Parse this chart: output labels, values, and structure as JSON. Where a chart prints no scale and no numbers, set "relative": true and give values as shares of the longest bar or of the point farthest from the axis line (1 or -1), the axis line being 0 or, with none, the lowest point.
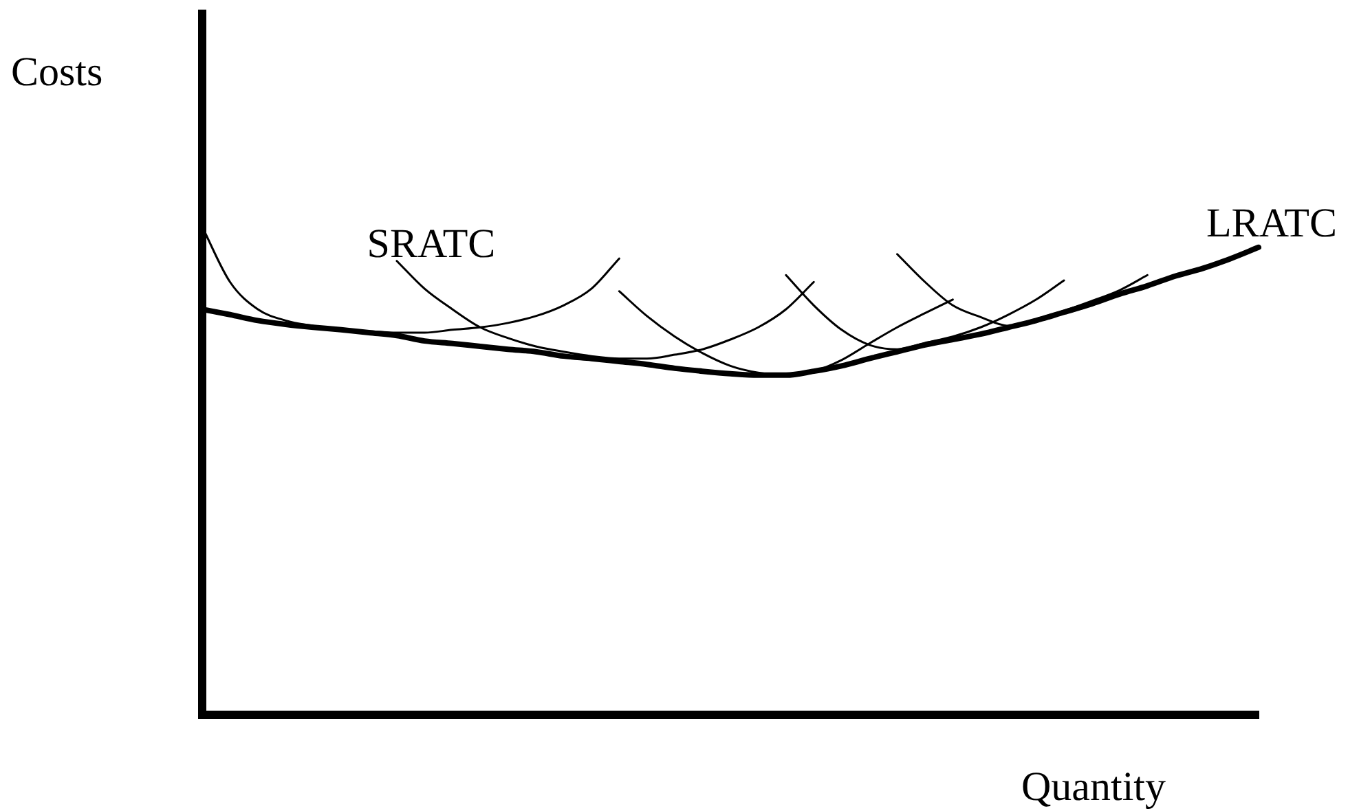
{
  "chart_data": {
    "type": "line",
    "relative": true,
    "xlabel": "Quantity",
    "ylabel": "Costs",
    "legend": false,
    "marker": "none",
    "grid": false,
    "categories": [
      null,
      null,
      null,
      null,
      null,
      null,
      null,
      null,
      null,
      null,
      null,
      null,
      null,
      null,
      null,
      null,
      null,
      null,
      null,
      null,
      null,
      null,
      null,
      null,
      null,
      null,
      null,
      null,
      null,
      null,
      null,
      null,
      null,
      null,
      null,
      null,
      null,
      null,
      null
    ],
    "series": [
      {
        "color": "#000000",
        "values": [
          1.0,
          0.887,
          0.831,
          0.808,
          0.797,
          0.789,
          0.786,
          0.783,
          0.783,
          0.789,
          0.794,
          0.803,
          0.817,
          0.839,
          0.873,
          0.935,
          null,
          null,
          null,
          null,
          null,
          null,
          null,
          null,
          null,
          null,
          null,
          null,
          null,
          null,
          null,
          null,
          null,
          null,
          null,
          null,
          null,
          null,
          null
        ]
      },
      {
        "name": "SRATC",
        "color": "#000000",
        "values": [
          null,
          null,
          null,
          null,
          null,
          null,
          null,
          0.93,
          0.873,
          0.831,
          0.794,
          0.772,
          0.755,
          0.744,
          0.735,
          0.73,
          0.73,
          0.738,
          0.749,
          0.769,
          0.794,
          0.831,
          0.887,
          null,
          null,
          null,
          null,
          null,
          null,
          null,
          null,
          null,
          null,
          null,
          null,
          null,
          null,
          null,
          null
        ]
      },
      {
        "color": "#000000",
        "values": [
          null,
          null,
          null,
          null,
          null,
          null,
          null,
          null,
          null,
          null,
          null,
          null,
          null,
          null,
          null,
          0.868,
          0.817,
          0.775,
          0.741,
          0.715,
          0.701,
          0.696,
          0.704,
          0.727,
          0.761,
          0.794,
          0.823,
          0.851,
          null,
          null,
          null,
          null,
          null,
          null,
          null,
          null,
          null,
          null,
          null
        ]
      },
      {
        "color": "#000000",
        "values": [
          null,
          null,
          null,
          null,
          null,
          null,
          null,
          null,
          null,
          null,
          null,
          null,
          null,
          null,
          null,
          null,
          null,
          null,
          null,
          null,
          null,
          0.901,
          0.839,
          0.789,
          0.758,
          0.749,
          0.762,
          0.775,
          0.794,
          0.82,
          0.851,
          0.89,
          null,
          null,
          null,
          null,
          null,
          null,
          null
        ]
      },
      {
        "color": "#000000",
        "values": [
          null,
          null,
          null,
          null,
          null,
          null,
          null,
          null,
          null,
          null,
          null,
          null,
          null,
          null,
          null,
          null,
          null,
          null,
          null,
          null,
          null,
          null,
          null,
          null,
          null,
          0.944,
          0.887,
          0.839,
          0.815,
          0.797,
          0.811,
          0.828,
          0.848,
          0.87,
          0.901,
          null,
          null,
          null,
          null
        ]
      },
      {
        "name": "LRATC",
        "color": "#000000",
        "values": [
          0.831,
          0.82,
          0.808,
          0.8,
          0.794,
          0.789,
          0.783,
          0.777,
          0.766,
          0.761,
          0.755,
          0.749,
          0.744,
          0.735,
          0.73,
          0.724,
          0.718,
          0.71,
          0.704,
          0.699,
          0.696,
          0.696,
          0.704,
          0.715,
          0.73,
          0.744,
          0.758,
          0.769,
          0.78,
          0.794,
          0.808,
          0.825,
          0.842,
          0.862,
          0.879,
          0.899,
          0.915,
          0.935,
          0.958
        ]
      }
    ]
  }
}
